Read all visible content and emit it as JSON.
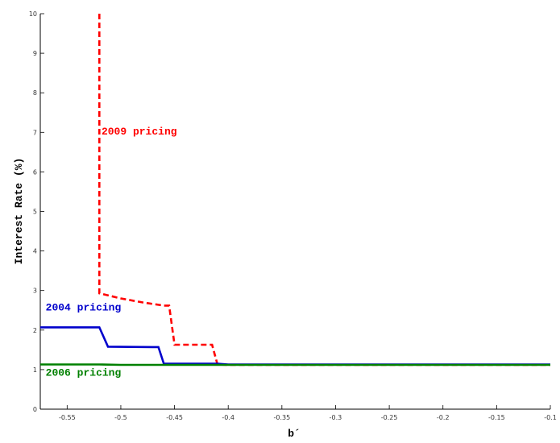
{
  "chart_data": {
    "type": "line",
    "title": "",
    "xlabel": "b´",
    "ylabel": "Interest Rate (%)",
    "xlim": [
      -0.575,
      -0.1
    ],
    "ylim": [
      0,
      10
    ],
    "x_ticks": [
      -0.55,
      -0.5,
      -0.45,
      -0.4,
      -0.35,
      -0.3,
      -0.25,
      -0.2,
      -0.15,
      -0.1
    ],
    "x_tick_labels": [
      "-0.55",
      "-0.5",
      "-0.45",
      "-0.4",
      "-0.35",
      "-0.3",
      "-0.25",
      "-0.2",
      "-0.15",
      "-0.1"
    ],
    "y_ticks": [
      0,
      1,
      2,
      3,
      4,
      5,
      6,
      7,
      8,
      9,
      10
    ],
    "y_tick_labels": [
      "0",
      "1",
      "2",
      "3",
      "4",
      "5",
      "6",
      "7",
      "8",
      "9",
      "10"
    ],
    "grid": false,
    "series": [
      {
        "color": "#ff0000",
        "dash": "dashed",
        "x": [
          -0.52,
          -0.52,
          -0.5,
          -0.48,
          -0.46,
          -0.455,
          -0.45,
          -0.415,
          -0.41,
          -0.4,
          -0.35,
          -0.3,
          -0.25,
          -0.2,
          -0.15,
          -0.1
        ],
        "y": [
          10,
          2.93,
          2.8,
          2.7,
          2.62,
          2.62,
          1.63,
          1.63,
          1.13,
          1.12,
          1.12,
          1.12,
          1.12,
          1.12,
          1.12,
          1.12
        ]
      },
      {
        "color": "#0000cc",
        "dash": "solid",
        "x": [
          -0.575,
          -0.52,
          -0.512,
          -0.47,
          -0.465,
          -0.46,
          -0.41,
          -0.4,
          -0.35,
          -0.3,
          -0.25,
          -0.2,
          -0.15,
          -0.1
        ],
        "y": [
          2.07,
          2.07,
          1.58,
          1.57,
          1.57,
          1.15,
          1.15,
          1.13,
          1.13,
          1.13,
          1.13,
          1.13,
          1.13,
          1.13
        ]
      },
      {
        "color": "#008000",
        "dash": "solid",
        "x": [
          -0.575,
          -0.52,
          -0.5,
          -0.45,
          -0.4,
          -0.35,
          -0.3,
          -0.25,
          -0.2,
          -0.15,
          -0.1
        ],
        "y": [
          1.13,
          1.13,
          1.12,
          1.12,
          1.12,
          1.12,
          1.12,
          1.12,
          1.12,
          1.12,
          1.12
        ]
      }
    ],
    "annotations": [
      {
        "text": "2009 pricing",
        "x": -0.518,
        "y": 6.95,
        "color": "#ff0000"
      },
      {
        "text": "2004 pricing",
        "x": -0.57,
        "y": 2.5,
        "color": "#0000cc"
      },
      {
        "text": "2006 pricing",
        "x": -0.57,
        "y": 0.85,
        "color": "#008000"
      }
    ]
  }
}
